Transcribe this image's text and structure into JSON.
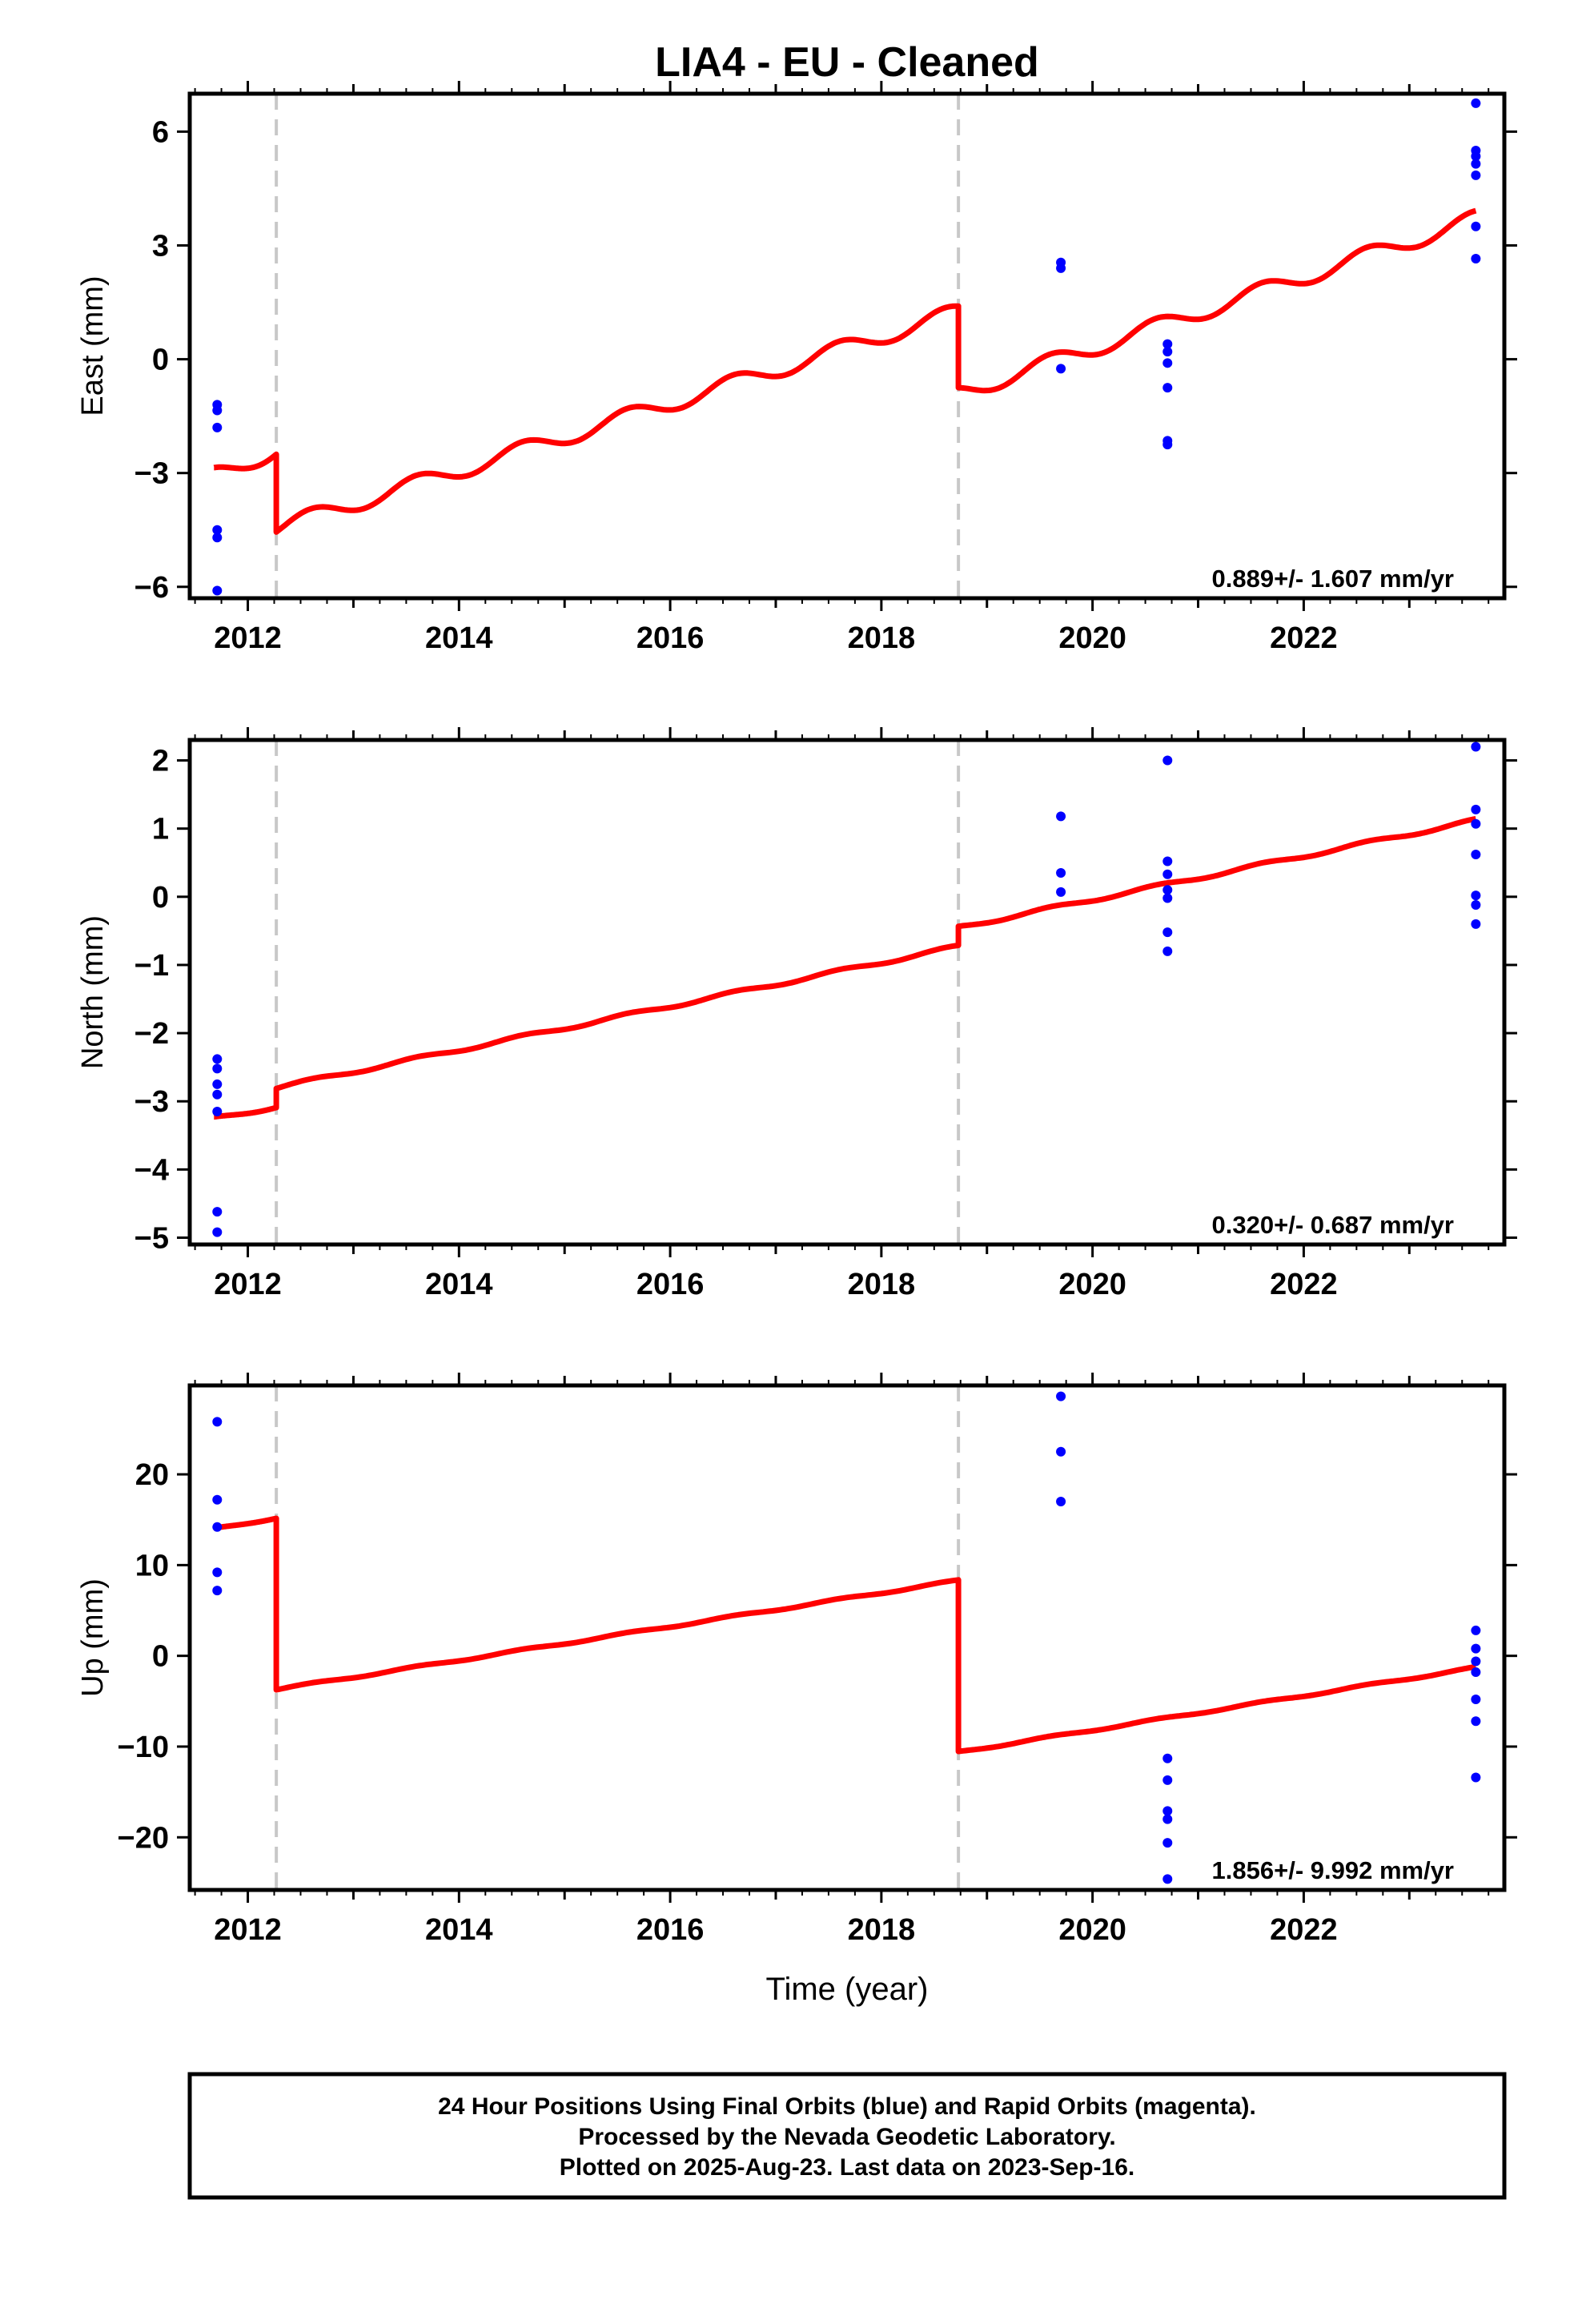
{
  "title": "LIA4  - EU - Cleaned",
  "xlabel": "Time (year)",
  "x_ticks": [
    2012,
    2014,
    2016,
    2018,
    2020,
    2022
  ],
  "x_range": [
    2011.45,
    2023.9
  ],
  "colors": {
    "data": "#0000ff",
    "model": "#ff0000",
    "break": "#c8c8c8",
    "frame": "#000000"
  },
  "footer": {
    "line1": "24 Hour Positions Using Final Orbits (blue) and Rapid Orbits (magenta).",
    "line2": "Processed by the Nevada Geodetic Laboratory.",
    "line3": "Plotted on 2025-Aug-23. Last data on 2023-Sep-16."
  },
  "chart_data": [
    {
      "type": "scatter",
      "panel": "east",
      "ylabel": "East (mm)",
      "ylim": [
        -6.3,
        7.0
      ],
      "y_ticks": [
        -6,
        -3,
        0,
        3,
        6
      ],
      "y_tick_labels": [
        "−6",
        "−3",
        "0",
        "3",
        "6"
      ],
      "rate_text": "0.889+/- 1.607 mm/yr",
      "breaks": [
        2012.27,
        2018.73
      ],
      "points": [
        [
          2011.71,
          -1.2
        ],
        [
          2011.71,
          -1.35
        ],
        [
          2011.71,
          -1.8
        ],
        [
          2011.71,
          -4.5
        ],
        [
          2011.71,
          -4.7
        ],
        [
          2011.71,
          -6.1
        ],
        [
          2019.7,
          2.55
        ],
        [
          2019.7,
          2.4
        ],
        [
          2019.7,
          -0.25
        ],
        [
          2020.71,
          0.4
        ],
        [
          2020.71,
          0.2
        ],
        [
          2020.71,
          -0.1
        ],
        [
          2020.71,
          -0.75
        ],
        [
          2020.71,
          -2.15
        ],
        [
          2020.71,
          -2.25
        ],
        [
          2023.63,
          6.75
        ],
        [
          2023.63,
          5.5
        ],
        [
          2023.63,
          5.35
        ],
        [
          2023.63,
          5.15
        ],
        [
          2023.63,
          4.85
        ],
        [
          2023.63,
          3.5
        ],
        [
          2023.63,
          2.65
        ]
      ],
      "model": {
        "segments": [
          {
            "start": 2011.68,
            "end": 2012.27,
            "y_start": -3.05,
            "y_end": -2.4
          },
          {
            "start": 2012.27,
            "end": 2018.73,
            "y_start": -4.45,
            "y_end": 1.25
          },
          {
            "start": 2018.73,
            "end": 2023.63,
            "y_start": -0.9,
            "y_end": 3.7
          }
        ],
        "seasonal_amplitude": 0.22,
        "seasonal_phase": 0.35
      }
    },
    {
      "type": "scatter",
      "panel": "north",
      "ylabel": "North (mm)",
      "ylim": [
        -5.1,
        2.3
      ],
      "y_ticks": [
        -5,
        -4,
        -3,
        -2,
        -1,
        0,
        1,
        2
      ],
      "y_tick_labels": [
        "−5",
        "−4",
        "−3",
        "−2",
        "−1",
        "0",
        "1",
        "2"
      ],
      "rate_text": "0.320+/- 0.687 mm/yr",
      "breaks": [
        2012.27,
        2018.73
      ],
      "points": [
        [
          2011.71,
          -2.38
        ],
        [
          2011.71,
          -2.52
        ],
        [
          2011.71,
          -2.75
        ],
        [
          2011.71,
          -2.9
        ],
        [
          2011.71,
          -3.15
        ],
        [
          2011.71,
          -4.62
        ],
        [
          2011.71,
          -4.92
        ],
        [
          2019.7,
          1.18
        ],
        [
          2019.7,
          0.35
        ],
        [
          2019.7,
          0.07
        ],
        [
          2020.71,
          2.0
        ],
        [
          2020.71,
          0.52
        ],
        [
          2020.71,
          0.33
        ],
        [
          2020.71,
          0.1
        ],
        [
          2020.71,
          -0.02
        ],
        [
          2020.71,
          -0.52
        ],
        [
          2020.71,
          -0.8
        ],
        [
          2023.63,
          2.2
        ],
        [
          2023.63,
          1.28
        ],
        [
          2023.63,
          1.07
        ],
        [
          2023.63,
          0.62
        ],
        [
          2023.63,
          0.02
        ],
        [
          2023.63,
          -0.12
        ],
        [
          2023.63,
          -0.4
        ]
      ],
      "model": {
        "segments": [
          {
            "start": 2011.68,
            "end": 2012.27,
            "y_start": -3.25,
            "y_end": -3.08
          },
          {
            "start": 2012.27,
            "end": 2018.73,
            "y_start": -2.8,
            "y_end": -0.73
          },
          {
            "start": 2018.73,
            "end": 2023.63,
            "y_start": -0.45,
            "y_end": 1.12
          }
        ],
        "seasonal_amplitude": 0.025,
        "seasonal_phase": 0.35
      }
    },
    {
      "type": "scatter",
      "panel": "up",
      "ylabel": "Up (mm)",
      "ylim": [
        -25.8,
        29.8
      ],
      "y_ticks": [
        -20,
        -10,
        0,
        10,
        20
      ],
      "y_tick_labels": [
        "−20",
        "−10",
        "0",
        "10",
        "20"
      ],
      "rate_text": "1.856+/- 9.992 mm/yr",
      "breaks": [
        2012.27,
        2018.73
      ],
      "points": [
        [
          2011.71,
          25.8
        ],
        [
          2011.71,
          17.2
        ],
        [
          2011.71,
          14.2
        ],
        [
          2011.71,
          9.2
        ],
        [
          2011.71,
          7.2
        ],
        [
          2019.7,
          28.6
        ],
        [
          2019.7,
          22.5
        ],
        [
          2019.7,
          17.0
        ],
        [
          2020.71,
          -11.3
        ],
        [
          2020.71,
          -13.7
        ],
        [
          2020.71,
          -17.1
        ],
        [
          2020.71,
          -18.0
        ],
        [
          2020.71,
          -20.6
        ],
        [
          2020.71,
          -24.6
        ],
        [
          2023.63,
          2.8
        ],
        [
          2023.63,
          0.8
        ],
        [
          2023.63,
          -0.6
        ],
        [
          2023.63,
          -1.8
        ],
        [
          2023.63,
          -4.8
        ],
        [
          2023.63,
          -7.2
        ],
        [
          2023.63,
          -13.4
        ]
      ],
      "model": {
        "segments": [
          {
            "start": 2011.68,
            "end": 2012.27,
            "y_start": 14.0,
            "y_end": 15.2
          },
          {
            "start": 2012.27,
            "end": 2018.73,
            "y_start": -3.7,
            "y_end": 8.3
          },
          {
            "start": 2018.73,
            "end": 2023.63,
            "y_start": -10.6,
            "y_end": -1.3
          }
        ],
        "seasonal_amplitude": 0.1,
        "seasonal_phase": 0.35
      }
    }
  ]
}
